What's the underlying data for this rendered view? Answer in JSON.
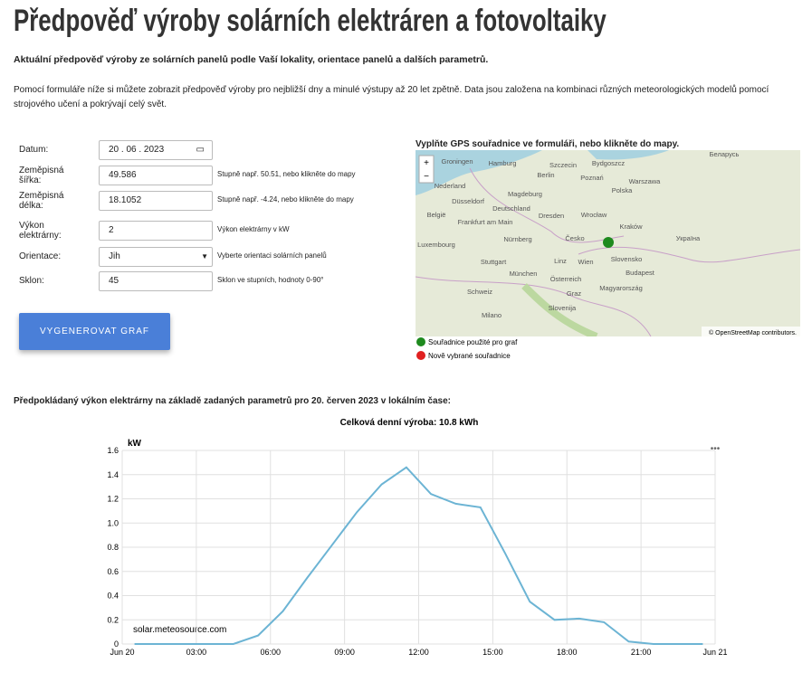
{
  "header": {
    "title": "Předpověď výroby solárních elektráren a fotovoltaiky",
    "subtitle": "Aktuální předpověď výroby ze solárních panelů podle Vaší lokality, orientace panelů a dalších parametrů.",
    "intro": "Pomocí formuláře níže si můžete zobrazit předpověď výroby pro nejbližší dny a minulé výstupy až 20 let zpětně. Data jsou založena na kombinaci různých meteorologických modelů pomocí strojového učení a pokrývají celý svět."
  },
  "form": {
    "rows": [
      {
        "label": "Datum:",
        "value": "20 . 06 . 2023"
      },
      {
        "label": "Zeměpisná šířka:",
        "value": "49.586",
        "hint": "Stupně např. 50.51, nebo klikněte do mapy"
      },
      {
        "label": "Zeměpisná délka:",
        "value": "18.1052",
        "hint": "Stupně např. -4.24, nebo klikněte do mapy"
      },
      {
        "label": "Výkon elektrárny:",
        "value": "2",
        "hint": "Výkon elektrárny v kW"
      },
      {
        "label": "Orientace:",
        "value": "Jih",
        "hint": "Vyberte orientaci solárních panelů"
      },
      {
        "label": "Sklon:",
        "value": "45",
        "hint": "Sklon ve stupních, hodnoty 0-90°"
      }
    ],
    "button": "VYGENEROVAT GRAF"
  },
  "map": {
    "heading": "Vyplňte GPS souřadnice ve formuláři, nebo klikněte do mapy.",
    "zoom_in": "+",
    "zoom_out": "−",
    "labels": [
      "Groningen",
      "Hamburg",
      "Szczecin",
      "Bydgoszcz",
      "Nederland",
      "Berlin",
      "Poznań",
      "Warszawa",
      "Polska",
      "Düsseldorf",
      "Magdeburg",
      "Deutschland",
      "België",
      "Frankfurt am Main",
      "Dresden",
      "Wrocław",
      "Kraków",
      "Luxembourg",
      "Nürnberg",
      "Česko",
      "Stuttgart",
      "Linz",
      "Wien",
      "Slovensko",
      "München",
      "Österreich",
      "Budapest",
      "Magyarország",
      "Schweiz",
      "Graz",
      "Milano",
      "Slovenija",
      "Беларусь",
      "Україна"
    ],
    "attribution": "© OpenStreetMap contributors.",
    "legend": [
      "Souřadnice použité pro graf",
      "Nově vybrané souřadnice"
    ]
  },
  "chart_intro": "Předpokládaný výkon elektrárny na základě zadaných parametrů pro 20. červen 2023 v lokálním čase:",
  "chart_data": {
    "type": "line",
    "title": "Celková denní výroba: 10.8 kWh",
    "ylabel": "kW",
    "watermark": "solar.meteosource.com",
    "color": "#6cb4d4",
    "x": [
      0.5,
      1.5,
      2.5,
      3.5,
      4.5,
      5.5,
      6.5,
      7.5,
      8.5,
      9.5,
      10.5,
      11.5,
      12.5,
      13.5,
      14.5,
      15.5,
      16.5,
      17.5,
      18.5,
      19.5,
      20.5,
      21.5,
      22.5,
      23.5
    ],
    "values": [
      0,
      0,
      0,
      0,
      0,
      0.07,
      0.27,
      0.55,
      0.82,
      1.09,
      1.32,
      1.46,
      1.24,
      1.16,
      1.13,
      0.75,
      0.35,
      0.2,
      0.21,
      0.18,
      0.02,
      0,
      0,
      0
    ],
    "xlim": [
      0,
      24
    ],
    "xticks": [
      {
        "value": 0,
        "label": "Jun 20"
      },
      {
        "value": 3,
        "label": "03:00"
      },
      {
        "value": 6,
        "label": "06:00"
      },
      {
        "value": 9,
        "label": "09:00"
      },
      {
        "value": 12,
        "label": "12:00"
      },
      {
        "value": 15,
        "label": "15:00"
      },
      {
        "value": 18,
        "label": "18:00"
      },
      {
        "value": 21,
        "label": "21:00"
      },
      {
        "value": 24,
        "label": "Jun 21"
      }
    ],
    "ylim": [
      0,
      1.6
    ],
    "yticks": [
      0,
      0.2,
      0.4,
      0.6,
      0.8,
      {
        "value": 1,
        "label": "1.0"
      },
      1.2,
      1.4,
      1.6
    ],
    "grid": true
  }
}
